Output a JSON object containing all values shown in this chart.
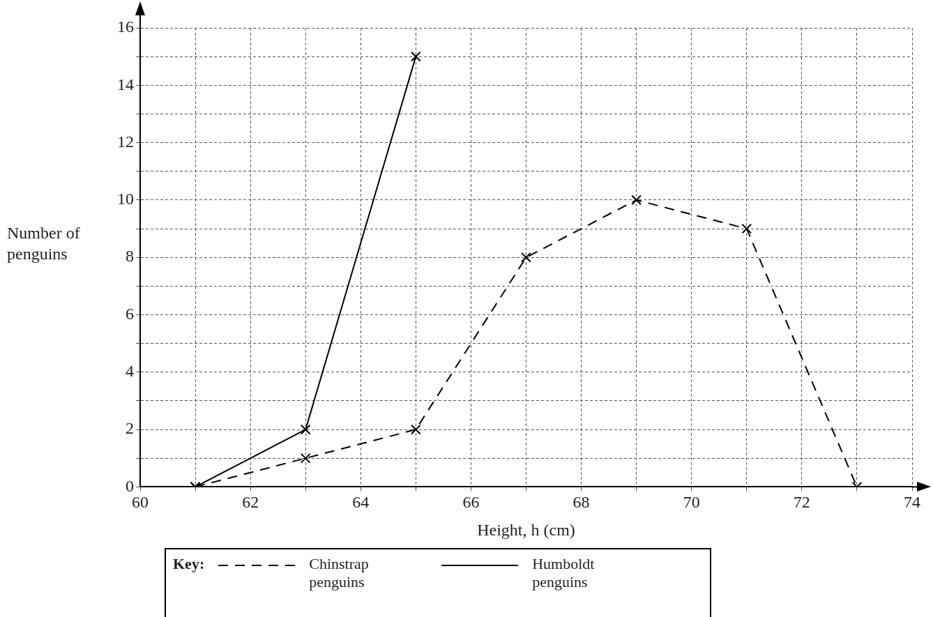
{
  "chart_data": {
    "type": "line",
    "xlabel": "Height, h (cm)",
    "ylabel": "Number of penguins",
    "legend_title": "Key:",
    "legend": "bottom",
    "grid": true,
    "marker": "cross",
    "xlim": [
      60,
      74
    ],
    "xticks": [
      60,
      {
        "value": 61,
        "label": null
      },
      62,
      {
        "value": 63,
        "label": null
      },
      64,
      {
        "value": 65,
        "label": null
      },
      66,
      {
        "value": 67,
        "label": null
      },
      68,
      {
        "value": 69,
        "label": null
      },
      70,
      {
        "value": 71,
        "label": null
      },
      72,
      {
        "value": 73,
        "label": null
      },
      74
    ],
    "ylim": [
      0,
      16
    ],
    "yticks": [
      0,
      {
        "value": 1,
        "label": null
      },
      2,
      {
        "value": 3,
        "label": null
      },
      4,
      {
        "value": 5,
        "label": null
      },
      6,
      {
        "value": 7,
        "label": null
      },
      8,
      {
        "value": 9,
        "label": null
      },
      10,
      {
        "value": 11,
        "label": null
      },
      12,
      {
        "value": 13,
        "label": null
      },
      14,
      {
        "value": 15,
        "label": null
      },
      16
    ],
    "series": [
      {
        "name": "Chinstrap penguins",
        "color": "#000000",
        "line_style": "dashed",
        "x": [
          61,
          63,
          65,
          67,
          69,
          71,
          73
        ],
        "values": [
          0,
          1,
          2,
          8,
          10,
          9,
          0
        ]
      },
      {
        "name": "Humboldt penguins",
        "color": "#000000",
        "line_style": "solid",
        "x": [
          61,
          63,
          65
        ],
        "values": [
          0,
          2,
          15
        ]
      }
    ]
  }
}
